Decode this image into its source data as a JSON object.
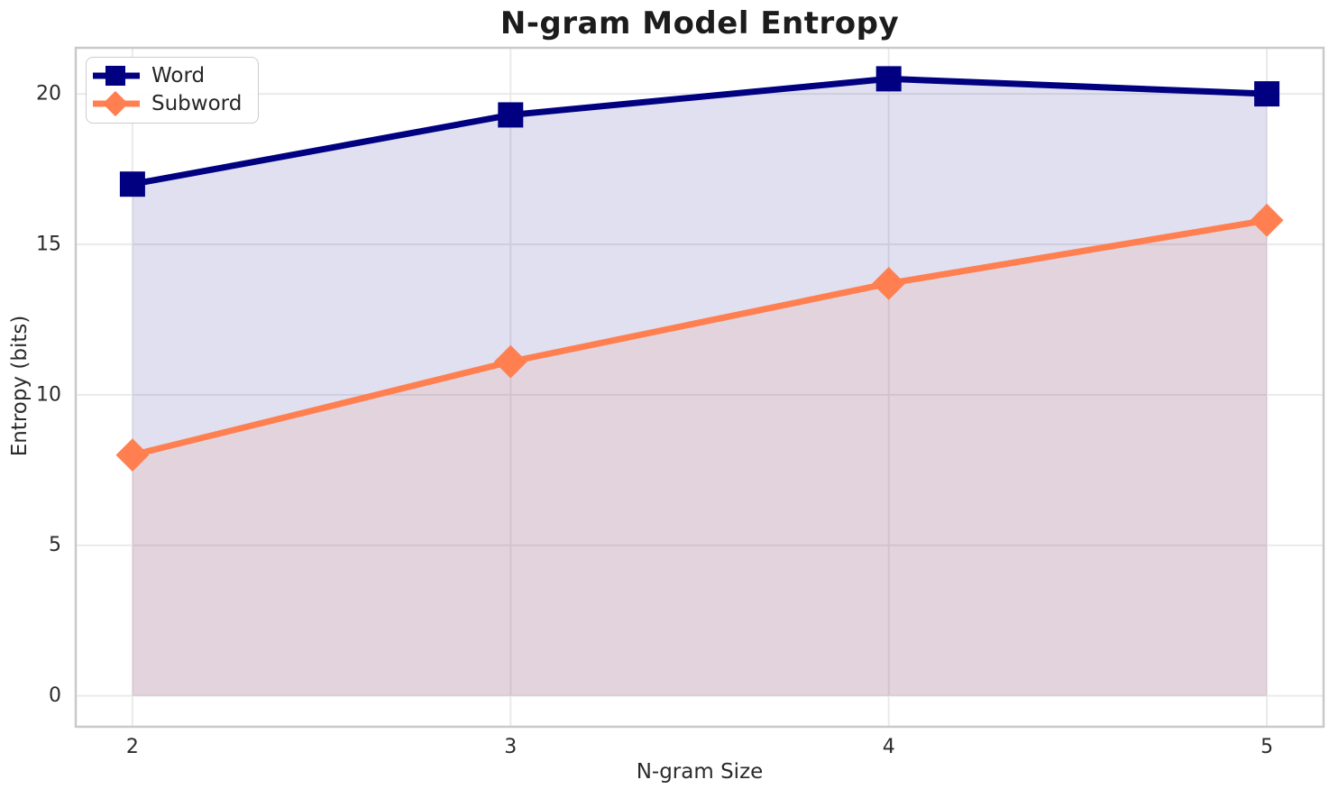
{
  "figure": {
    "title": "N-gram Model Entropy",
    "xlabel": "N-gram Size",
    "ylabel": "Entropy (bits)"
  },
  "legend": {
    "position": "upper-left",
    "items": [
      {
        "label": "Word",
        "marker": "square-marker-icon",
        "marker_shape": "square",
        "color": "#000080"
      },
      {
        "label": "Subword",
        "marker": "diamond-marker-icon",
        "marker_shape": "diamond",
        "color": "#FF7F50"
      }
    ]
  },
  "chart_data": {
    "type": "line",
    "title": "N-gram Model Entropy",
    "xlabel": "N-gram Size",
    "ylabel": "Entropy (bits)",
    "x": [
      2,
      3,
      4,
      5
    ],
    "series": [
      {
        "name": "Word",
        "values": [
          17.0,
          19.3,
          20.5,
          20.0
        ],
        "color": "#000080",
        "marker": "square",
        "area_fill_to_zero": true
      },
      {
        "name": "Subword",
        "values": [
          8.0,
          11.1,
          13.7,
          15.8
        ],
        "color": "#FF7F50",
        "marker": "diamond",
        "area_fill_to_zero": true
      }
    ],
    "fill_opacity": 0.12,
    "xticks": [
      2,
      3,
      4,
      5
    ],
    "yticks": [
      0,
      5,
      10,
      15,
      20
    ],
    "xlim": [
      1.85,
      5.15
    ],
    "ylim": [
      -1.03,
      21.53
    ],
    "grid": true,
    "legend_position": "upper left",
    "colors": {
      "grid": "#EAEAEA",
      "spine": "#C9C9C9",
      "text": "#2B2B2B",
      "title": "#1C1C1C",
      "background": "#FFFFFF"
    }
  }
}
